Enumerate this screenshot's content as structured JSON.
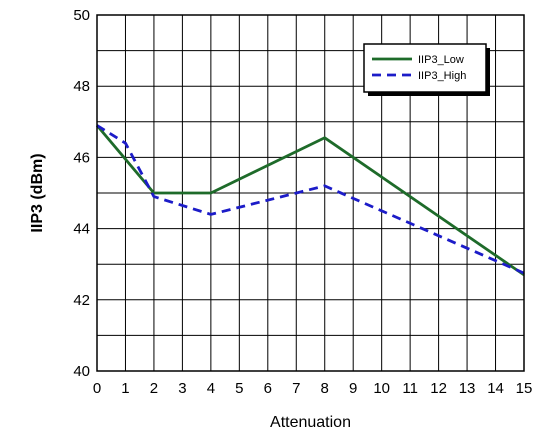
{
  "chart_data": {
    "type": "line",
    "xlabel": "Attenuation",
    "ylabel": "IIP3 (dBm)",
    "xlim": [
      0,
      15
    ],
    "ylim": [
      40,
      50
    ],
    "xticks": [
      0,
      1,
      2,
      3,
      4,
      5,
      6,
      7,
      8,
      9,
      10,
      11,
      12,
      13,
      14,
      15
    ],
    "yticks": [
      40,
      42,
      44,
      46,
      48,
      50
    ],
    "grid": true,
    "legend_position": "top-right",
    "series": [
      {
        "name": "IIP3_Low",
        "color": "#1e6b2a",
        "dash": "solid",
        "x": [
          0,
          2,
          4,
          8,
          15
        ],
        "y": [
          46.9,
          45.0,
          45.0,
          46.55,
          42.7
        ]
      },
      {
        "name": "IIP3_High",
        "color": "#1c1cc8",
        "dash": "dashed",
        "x": [
          0,
          1,
          2,
          4,
          8,
          15
        ],
        "y": [
          46.9,
          46.4,
          44.9,
          44.4,
          45.2,
          42.75
        ]
      }
    ]
  }
}
